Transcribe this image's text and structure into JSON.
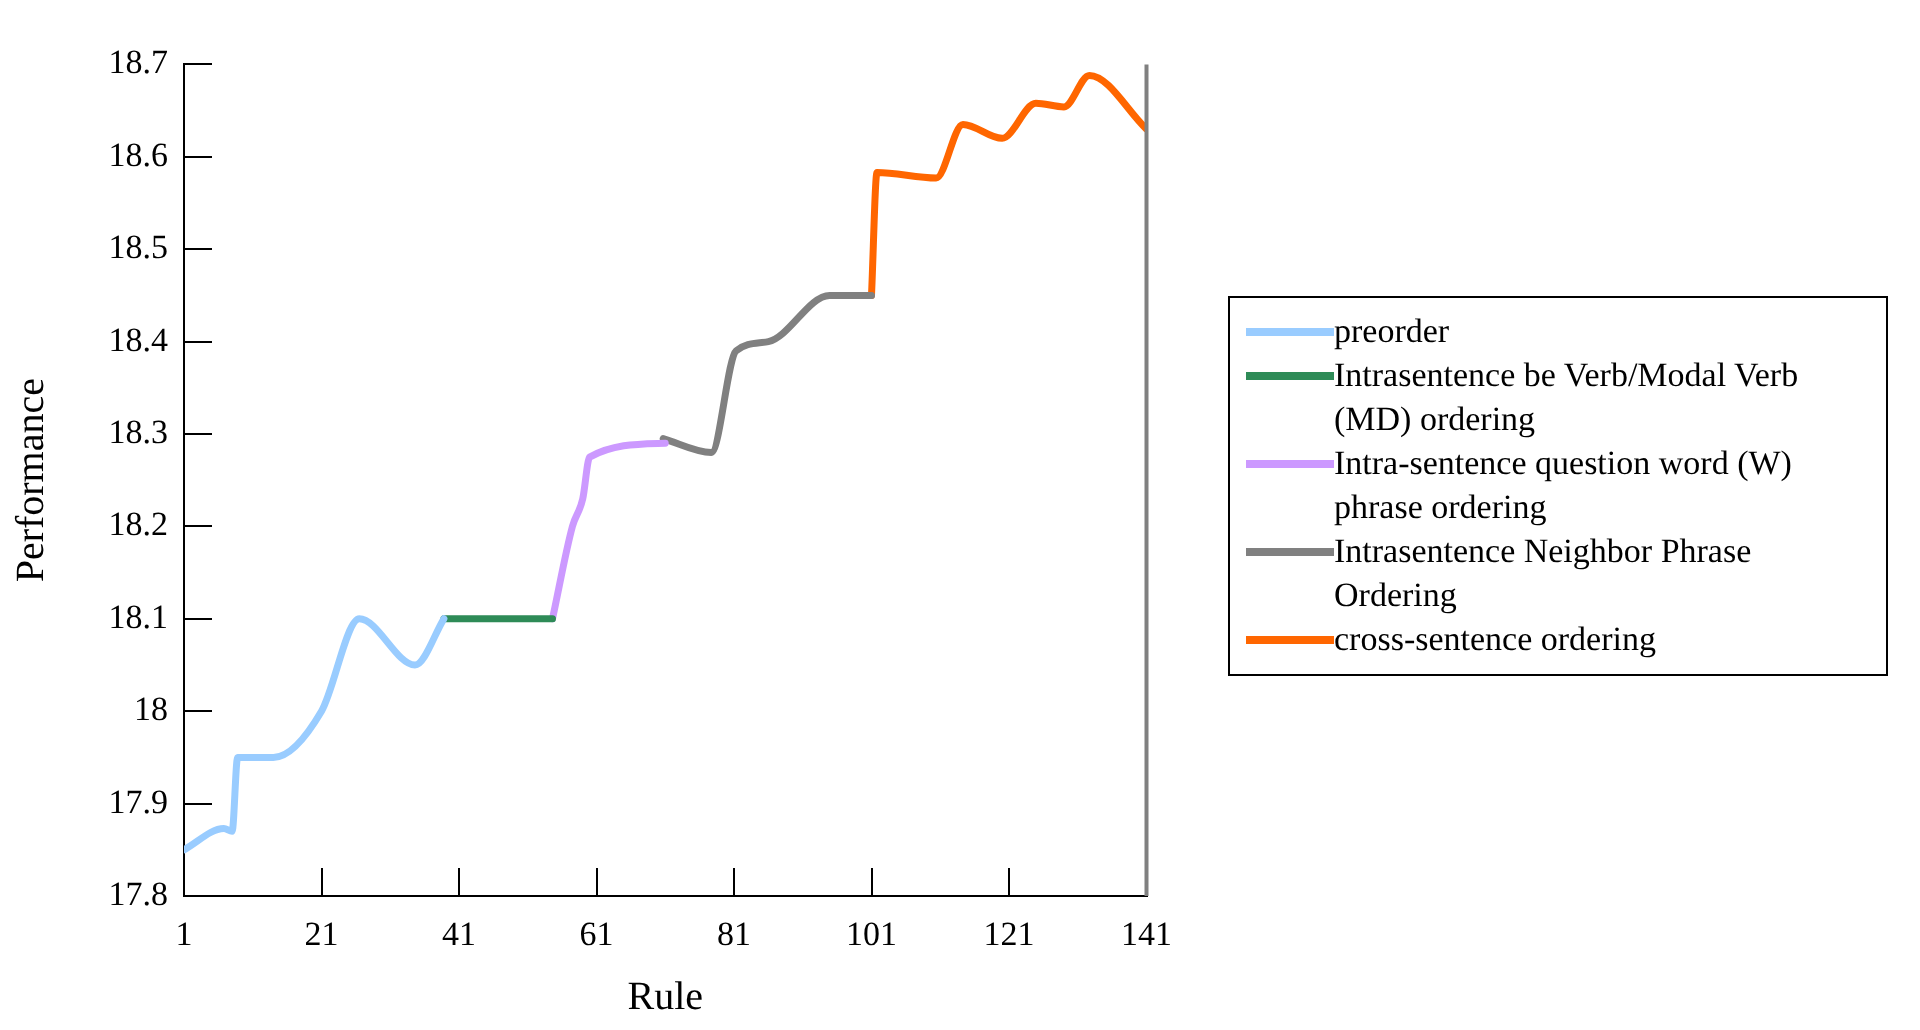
{
  "chart_data": {
    "type": "line",
    "xlabel": "Rule",
    "ylabel": "Performance",
    "xlim": [
      1,
      141
    ],
    "xticks": [
      1,
      21,
      41,
      61,
      81,
      101,
      121,
      141
    ],
    "ylim": [
      17.8,
      18.7
    ],
    "yticks": [
      17.8,
      17.9,
      18,
      18.1,
      18.2,
      18.3,
      18.4,
      18.5,
      18.6,
      18.7
    ],
    "grid": false,
    "legend": "right",
    "marker": "none",
    "line_style": "solid",
    "series": [
      {
        "name": "preorder",
        "color": "#99ccff",
        "x": [
          1,
          6.8,
          8,
          8.8,
          14,
          21,
          26.5,
          34.6,
          38.8
        ],
        "values": [
          17.85,
          17.873,
          17.87,
          17.95,
          17.95,
          18.0,
          18.1,
          18.05,
          18.1
        ]
      },
      {
        "name": "Intrasentence be Verb/Modal Verb (MD) ordering",
        "color": "#2e8b57",
        "x": [
          38.8,
          54.6
        ],
        "values": [
          18.1,
          18.1
        ]
      },
      {
        "name": "Intra-sentence question word (W) phrase ordering",
        "color": "#cc99ff",
        "x": [
          54.6,
          57.5,
          59,
          60,
          71
        ],
        "values": [
          18.1,
          18.2,
          18.23,
          18.275,
          18.29
        ]
      },
      {
        "name": "Intrasentence Neighbor Phrase Ordering",
        "color": "#808080",
        "x": [
          70.7,
          77.7,
          81.3,
          86,
          94.9,
          101
        ],
        "values": [
          18.295,
          18.28,
          18.39,
          18.4,
          18.45,
          18.45
        ]
      },
      {
        "name": "cross-sentence ordering",
        "color": "#ff6600",
        "x": [
          101,
          101.8,
          110.4,
          114.3,
          120,
          124.9,
          129,
          132.7,
          141
        ],
        "values": [
          18.45,
          18.583,
          18.577,
          18.635,
          18.62,
          18.658,
          18.654,
          18.688,
          18.63
        ]
      }
    ]
  }
}
